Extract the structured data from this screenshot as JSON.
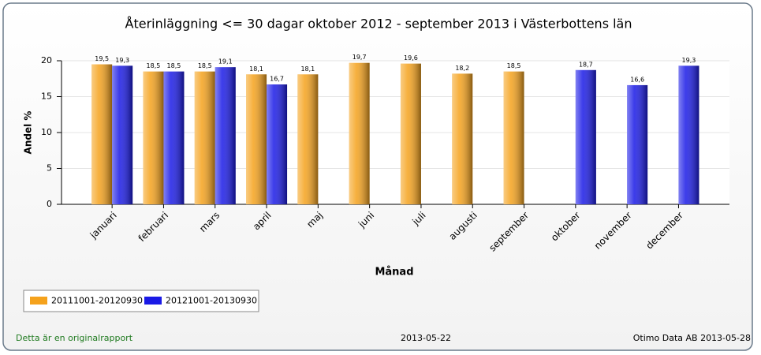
{
  "chart_data": {
    "type": "bar",
    "title": "Återinläggning <= 30 dagar oktober 2012 - september 2013 i Västerbottens län",
    "x_label": "Månad",
    "y_label": "Andel %",
    "categories": [
      "januari",
      "februari",
      "mars",
      "april",
      "maj",
      "juni",
      "juli",
      "augusti",
      "september",
      "oktober",
      "november",
      "december"
    ],
    "series": [
      {
        "name": "20111001-20120930",
        "color": "#f5a21c",
        "values": [
          19.5,
          18.5,
          18.5,
          18.1,
          18.1,
          19.7,
          19.6,
          18.2,
          18.5,
          null,
          null,
          null
        ],
        "value_labels": [
          "19,5",
          "18,5",
          "18,5",
          "18,1",
          "18,1",
          "19,7",
          "19,6",
          "18,2",
          "18,5",
          null,
          null,
          null
        ]
      },
      {
        "name": "20121001-20130930",
        "color": "#1a1ae6",
        "values": [
          19.3,
          18.5,
          19.1,
          16.7,
          null,
          null,
          null,
          null,
          null,
          18.7,
          16.6,
          19.3
        ],
        "value_labels": [
          "19,3",
          "18,5",
          "19,1",
          "16,7",
          null,
          null,
          null,
          null,
          null,
          "18,7",
          "16,6",
          "19,3"
        ]
      }
    ],
    "ylim": [
      0,
      20
    ],
    "yticks": [
      0,
      5,
      10,
      15,
      20
    ],
    "grid": true,
    "legend": "bottom-left"
  },
  "footer": {
    "left": "Detta är en originalrapport",
    "center": "2013-05-22",
    "right": "Otimo Data AB 2013-05-28"
  }
}
